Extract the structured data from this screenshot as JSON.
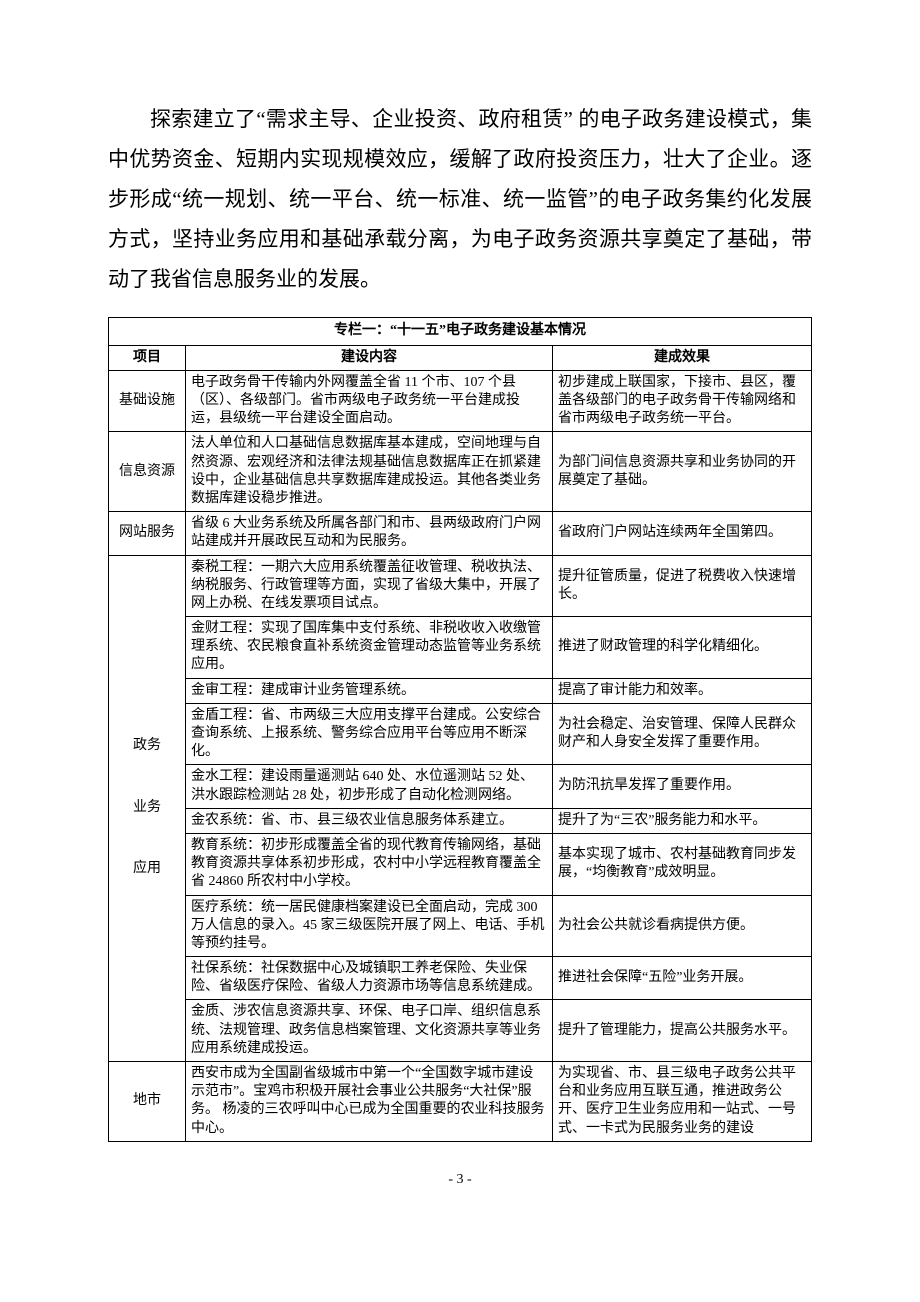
{
  "paragraph": "探索建立了“需求主导、企业投资、政府租赁” 的电子政务建设模式，集中优势资金、短期内实现规模效应，缓解了政府投资压力，壮大了企业。逐步形成“统一规划、统一平台、统一标准、统一监管”的电子政务集约化发展方式，坚持业务应用和基础承载分离，为电子政务资源共享奠定了基础，带动了我省信息服务业的发展。",
  "table": {
    "title": "专栏一：“十一五”电子政务建设基本情况",
    "headers": {
      "item": "项目",
      "content": "建设内容",
      "effect": "建成效果"
    },
    "rows": [
      {
        "item": "基础设施",
        "content": "电子政务骨干传输内外网覆盖全省 11 个市、107 个县（区）、各级部门。省市两级电子政务统一平台建成投运，县级统一平台建设全面启动。",
        "effect": "初步建成上联国家，下接市、县区，覆盖各级部门的电子政务骨干传输网络和省市两级电子政务统一平台。"
      },
      {
        "item": "信息资源",
        "content": "法人单位和人口基础信息数据库基本建成，空间地理与自然资源、宏观经济和法律法规基础信息数据库正在抓紧建设中，企业基础信息共享数据库建成投运。其他各类业务数据库建设稳步推进。",
        "effect": "为部门间信息资源共享和业务协同的开展奠定了基础。"
      },
      {
        "item": "网站服务",
        "content": "省级 6 大业务系统及所属各部门和市、县两级政府门户网站建成并开展政民互动和为民服务。",
        "effect": "省政府门户网站连续两年全国第四。"
      },
      {
        "item": "政务\n\n业务\n\n应用",
        "rowspan": 10,
        "content": "秦税工程：一期六大应用系统覆盖征收管理、税收执法、纳税服务、行政管理等方面，实现了省级大集中，开展了网上办税、在线发票项目试点。",
        "effect": "提升征管质量，促进了税费收入快速增长。"
      },
      {
        "content": "金财工程：实现了国库集中支付系统、非税收收入收缴管理系统、农民粮食直补系统资金管理动态监管等业务系统应用。",
        "effect": "推进了财政管理的科学化精细化。"
      },
      {
        "content": "金审工程：建成审计业务管理系统。",
        "effect": "提高了审计能力和效率。"
      },
      {
        "content": "金盾工程：省、市两级三大应用支撑平台建成。公安综合查询系统、上报系统、警务综合应用平台等应用不断深化。",
        "effect": "为社会稳定、治安管理、保障人民群众财产和人身安全发挥了重要作用。"
      },
      {
        "content": "金水工程：建设雨量遥测站 640 处、水位遥测站 52 处、洪水跟踪检测站 28 处，初步形成了自动化检测网络。",
        "effect": "为防汛抗旱发挥了重要作用。"
      },
      {
        "content": "金农系统：省、市、县三级农业信息服务体系建立。",
        "effect": "提升了为“三农”服务能力和水平。"
      },
      {
        "content": "教育系统：初步形成覆盖全省的现代教育传输网络，基础教育资源共享体系初步形成，农村中小学远程教育覆盖全省 24860 所农村中小学校。",
        "effect": "基本实现了城市、农村基础教育同步发展，“均衡教育”成效明显。"
      },
      {
        "content": "医疗系统：统一居民健康档案建设已全面启动，完成 300 万人信息的录入。45 家三级医院开展了网上、电话、手机等预约挂号。",
        "effect": "为社会公共就诊看病提供方便。"
      },
      {
        "content": "社保系统：社保数据中心及城镇职工养老保险、失业保险、省级医疗保险、省级人力资源市场等信息系统建成。",
        "effect": "推进社会保障“五险”业务开展。"
      },
      {
        "content": "金质、涉农信息资源共享、环保、电子口岸、组织信息系统、法规管理、政务信息档案管理、文化资源共享等业务应用系统建成投运。",
        "effect": "提升了管理能力，提高公共服务水平。"
      },
      {
        "item": "地市",
        "content": "西安市成为全国副省级城市中第一个“全国数字城市建设示范市”。宝鸡市积极开展社会事业公共服务“大社保”服务。  杨凌的三农呼叫中心已成为全国重要的农业科技服务中心。",
        "effect": "为实现省、市、县三级电子政务公共平台和业务应用互联互通，推进政务公开、医疗卫生业务应用和一站式、一号式、一卡式为民服务业务的建设"
      }
    ]
  },
  "pagenum": "- 3 -"
}
